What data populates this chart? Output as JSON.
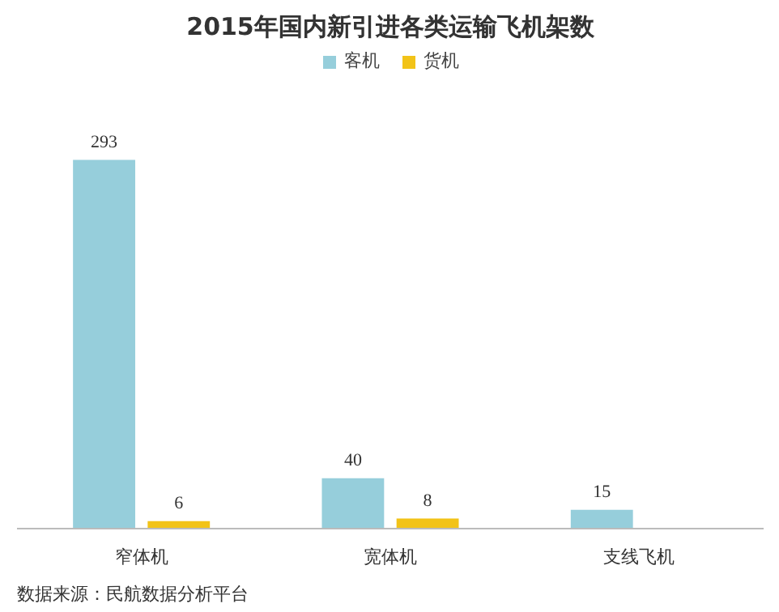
{
  "chart_data": {
    "type": "bar",
    "title": "2015年国内新引进各类运输飞机架数",
    "categories": [
      "窄体机",
      "宽体机",
      "支线飞机"
    ],
    "series": [
      {
        "name": "客机",
        "color": "#96cedb",
        "values": [
          293,
          40,
          15
        ]
      },
      {
        "name": "货机",
        "color": "#f2c318",
        "values": [
          6,
          8,
          null
        ]
      }
    ],
    "data_labels": true,
    "legend": "top",
    "grid": false,
    "annotations": [
      "数据来源：民航数据分析平台"
    ]
  }
}
